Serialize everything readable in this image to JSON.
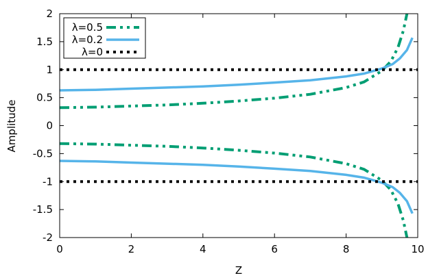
{
  "chart_data": {
    "type": "line",
    "title": "",
    "xlabel": "Z",
    "ylabel": "Amplitude",
    "xlim": [
      0,
      10
    ],
    "ylim": [
      -2,
      2
    ],
    "xticks": [
      "0",
      "2",
      "4",
      "6",
      "8",
      "10"
    ],
    "yticks": [
      "2",
      "1.5",
      "1",
      "0.5",
      "0",
      "-0.5",
      "-1",
      "-1.5",
      "-2"
    ],
    "grid": false,
    "legend_position": "top-left",
    "series": [
      {
        "name": "λ=0.5",
        "color": "#009e73",
        "dash": "dash-dot-dot",
        "branches": [
          {
            "x": [
              0,
              1,
              2,
              3,
              4,
              5,
              6,
              7,
              8,
              8.5,
              9,
              9.25,
              9.45,
              9.6,
              9.7
            ],
            "y": [
              0.32,
              0.33,
              0.35,
              0.37,
              0.4,
              0.44,
              0.49,
              0.56,
              0.68,
              0.78,
              0.98,
              1.15,
              1.4,
              1.7,
              2.0
            ]
          },
          {
            "x": [
              0,
              1,
              2,
              3,
              4,
              5,
              6,
              7,
              8,
              8.5,
              9,
              9.25,
              9.45,
              9.6,
              9.7
            ],
            "y": [
              -0.32,
              -0.33,
              -0.35,
              -0.37,
              -0.4,
              -0.44,
              -0.49,
              -0.56,
              -0.68,
              -0.78,
              -0.98,
              -1.15,
              -1.4,
              -1.7,
              -2.0
            ]
          }
        ]
      },
      {
        "name": "λ=0.2",
        "color": "#56b4e9",
        "dash": "solid",
        "branches": [
          {
            "x": [
              0,
              1,
              2,
              3,
              4,
              5,
              6,
              7,
              8,
              8.5,
              9,
              9.3,
              9.5,
              9.7,
              9.85
            ],
            "y": [
              0.63,
              0.64,
              0.66,
              0.68,
              0.7,
              0.73,
              0.77,
              0.81,
              0.88,
              0.93,
              1.02,
              1.1,
              1.2,
              1.35,
              1.57
            ]
          },
          {
            "x": [
              0,
              1,
              2,
              3,
              4,
              5,
              6,
              7,
              8,
              8.5,
              9,
              9.3,
              9.5,
              9.7,
              9.85
            ],
            "y": [
              -0.63,
              -0.64,
              -0.66,
              -0.68,
              -0.7,
              -0.73,
              -0.77,
              -0.81,
              -0.88,
              -0.93,
              -1.02,
              -1.1,
              -1.2,
              -1.35,
              -1.57
            ]
          }
        ]
      },
      {
        "name": "λ=0",
        "color": "#000000",
        "dash": "dotted",
        "branches": [
          {
            "x": [
              0,
              10
            ],
            "y": [
              1,
              1
            ]
          },
          {
            "x": [
              0,
              10
            ],
            "y": [
              -1,
              -1
            ]
          }
        ]
      }
    ]
  }
}
